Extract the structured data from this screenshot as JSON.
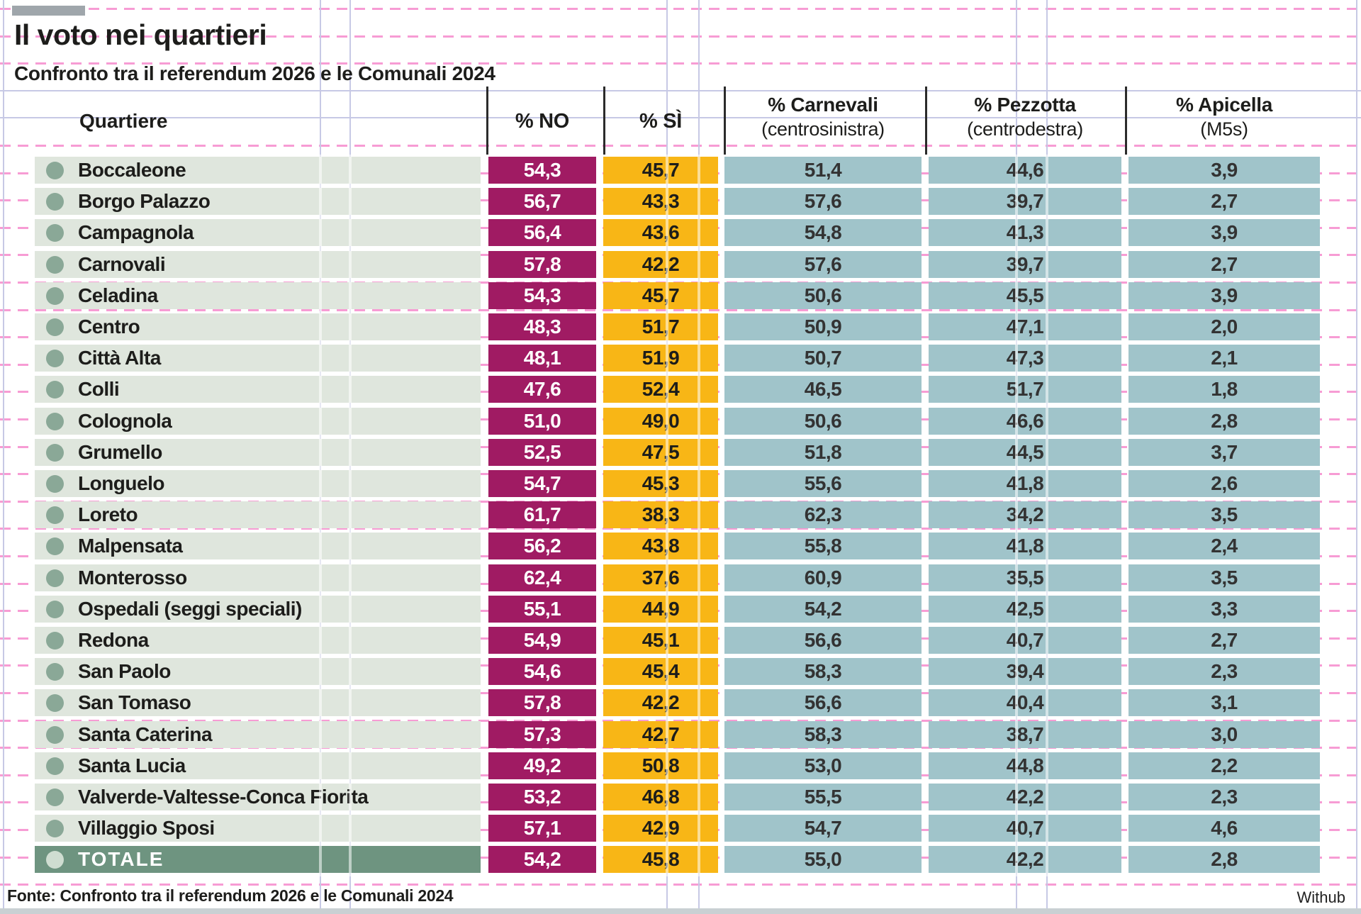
{
  "header": {
    "title": "Il voto nei quartieri",
    "subtitle": "Confronto tra il referendum 2026 e le Comunali 2024"
  },
  "table": {
    "quartiere_label": "Quartiere",
    "col_headers": [
      {
        "label": "% NO",
        "sub": ""
      },
      {
        "label": "% SÌ",
        "sub": ""
      },
      {
        "label": "% Carnevali",
        "sub": "(centrosinistra)"
      },
      {
        "label": "% Pezzotta",
        "sub": "(centrodestra)"
      },
      {
        "label": "% Apicella",
        "sub": "(M5s)"
      }
    ]
  },
  "footer": {
    "source": "Fonte: Confronto tra il referendum 2026 e le Comunali 2024",
    "credit": "Withub"
  },
  "colors": {
    "no_cell": "#a01b63",
    "si_cell": "#f8b616",
    "comparison_cell": "#a0c4ca",
    "row_bg": "#dfe6dd",
    "row_dot": "#8aa897",
    "total_bg": "#6e9480",
    "total_dot": "#cfddd1",
    "grid_pink": "#f79cd4",
    "grid_lavender": "#c7c9e5"
  },
  "chart_data": {
    "type": "table",
    "title": "Il voto nei quartieri",
    "subtitle": "Confronto tra il referendum 2026 e le Comunali 2024",
    "columns": [
      "Quartiere",
      "% NO",
      "% SÌ",
      "% Carnevali (centrosinistra)",
      "% Pezzotta (centrodestra)",
      "% Apicella (M5s)"
    ],
    "rows": [
      [
        "Boccaleone",
        54.3,
        45.7,
        51.4,
        44.6,
        3.9
      ],
      [
        "Borgo Palazzo",
        56.7,
        43.3,
        57.6,
        39.7,
        2.7
      ],
      [
        "Campagnola",
        56.4,
        43.6,
        54.8,
        41.3,
        3.9
      ],
      [
        "Carnovali",
        57.8,
        42.2,
        57.6,
        39.7,
        2.7
      ],
      [
        "Celadina",
        54.3,
        45.7,
        50.6,
        45.5,
        3.9
      ],
      [
        "Centro",
        48.3,
        51.7,
        50.9,
        47.1,
        2.0
      ],
      [
        "Città Alta",
        48.1,
        51.9,
        50.7,
        47.3,
        2.1
      ],
      [
        "Colli",
        47.6,
        52.4,
        46.5,
        51.7,
        1.8
      ],
      [
        "Colognola",
        51.0,
        49.0,
        50.6,
        46.6,
        2.8
      ],
      [
        "Grumello",
        52.5,
        47.5,
        51.8,
        44.5,
        3.7
      ],
      [
        "Longuelo",
        54.7,
        45.3,
        55.6,
        41.8,
        2.6
      ],
      [
        "Loreto",
        61.7,
        38.3,
        62.3,
        34.2,
        3.5
      ],
      [
        "Malpensata",
        56.2,
        43.8,
        55.8,
        41.8,
        2.4
      ],
      [
        "Monterosso",
        62.4,
        37.6,
        60.9,
        35.5,
        3.5
      ],
      [
        "Ospedali (seggi speciali)",
        55.1,
        44.9,
        54.2,
        42.5,
        3.3
      ],
      [
        "Redona",
        54.9,
        45.1,
        56.6,
        40.7,
        2.7
      ],
      [
        "San Paolo",
        54.6,
        45.4,
        58.3,
        39.4,
        2.3
      ],
      [
        "San Tomaso",
        57.8,
        42.2,
        56.6,
        40.4,
        3.1
      ],
      [
        "Santa Caterina",
        57.3,
        42.7,
        58.3,
        38.7,
        3.0
      ],
      [
        "Santa Lucia",
        49.2,
        50.8,
        53.0,
        44.8,
        2.2
      ],
      [
        "Valverde-Valtesse-Conca Fiorita",
        53.2,
        46.8,
        55.5,
        42.2,
        2.3
      ],
      [
        "Villaggio Sposi",
        57.1,
        42.9,
        54.7,
        40.7,
        4.6
      ]
    ],
    "total_row": [
      "TOTALE",
      54.2,
      45.8,
      55.0,
      42.2,
      2.8
    ],
    "value_format": "decimal-comma-1"
  }
}
